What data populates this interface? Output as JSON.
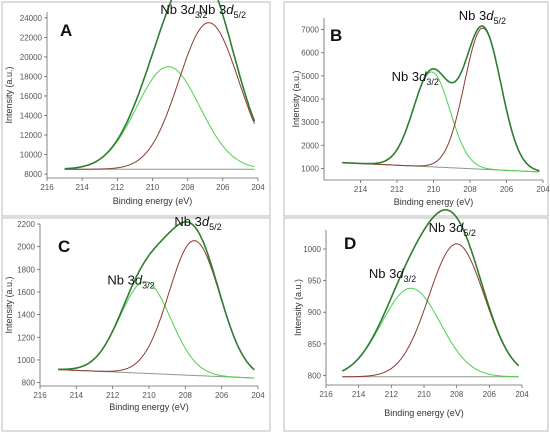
{
  "figure": {
    "peak_prefix": "Nb 3",
    "peak_italic": "d"
  },
  "colors": {
    "envelope": "#2e7d32",
    "nb52": "#8b3a2e",
    "nb32": "#4cd14c",
    "background": "#8a9a8a"
  },
  "chart_data": [
    {
      "panel": "A",
      "type": "line",
      "xlabel": "Binding energy (eV)",
      "ylabel": "Intensity (a.u.)",
      "xlim": [
        216,
        204
      ],
      "ylim": [
        7600,
        24600
      ],
      "grid": false,
      "x_ticks": [
        "216",
        "214",
        "212",
        "210",
        "208",
        "206",
        "204"
      ],
      "y_ticks": [
        "8000",
        "10000",
        "12000",
        "14000",
        "16000",
        "18000",
        "20000",
        "22000",
        "24000"
      ],
      "x_range": [
        215,
        204.2
      ],
      "baseline": [
        [
          215,
          8500
        ],
        [
          204.2,
          8500
        ]
      ],
      "peaks": [
        {
          "name": "Nb 3d3/2",
          "label_sub": "3/2",
          "center": 209.1,
          "height": 10500,
          "width": 1.8
        },
        {
          "name": "Nb 3d5/2",
          "label_sub": "5/2",
          "center": 206.8,
          "height": 15000,
          "width": 1.7
        }
      ]
    },
    {
      "panel": "B",
      "type": "line",
      "xlabel": "Binding energy (eV)",
      "ylabel": "Intensity (a.u.)",
      "xlim": [
        216,
        204
      ],
      "ylim": [
        500,
        7500
      ],
      "grid": false,
      "x_ticks": [
        "214",
        "212",
        "210",
        "208",
        "206",
        "204"
      ],
      "y_ticks": [
        "1000",
        "2000",
        "3000",
        "4000",
        "5000",
        "6000",
        "7000"
      ],
      "x_range": [
        215,
        204.2
      ],
      "baseline": [
        [
          215,
          1250
        ],
        [
          204.2,
          850
        ]
      ],
      "peaks": [
        {
          "name": "Nb 3d3/2",
          "label_sub": "3/2",
          "center": 210.1,
          "height": 4100,
          "width": 1.0
        },
        {
          "name": "Nb 3d5/2",
          "label_sub": "5/2",
          "center": 207.3,
          "height": 6100,
          "width": 1.0
        }
      ]
    },
    {
      "panel": "C",
      "type": "line",
      "xlabel": "Binding energy (eV)",
      "ylabel": "Intensity (a.u.)",
      "xlim": [
        216,
        204
      ],
      "ylim": [
        770,
        2200
      ],
      "grid": false,
      "x_ticks": [
        "216",
        "214",
        "212",
        "210",
        "208",
        "206",
        "204"
      ],
      "y_ticks": [
        "800",
        "1000",
        "1200",
        "1400",
        "1600",
        "1800",
        "2000",
        "2200"
      ],
      "x_range": [
        215,
        204.2
      ],
      "baseline": [
        [
          215,
          915
        ],
        [
          204.2,
          840
        ]
      ],
      "peaks": [
        {
          "name": "Nb 3d3/2",
          "label_sub": "3/2",
          "center": 210.2,
          "height": 810,
          "width": 1.4
        },
        {
          "name": "Nb 3d5/2",
          "label_sub": "5/2",
          "center": 207.5,
          "height": 1190,
          "width": 1.4
        }
      ]
    },
    {
      "panel": "D",
      "type": "line",
      "xlabel": "Binding energy (eV)",
      "ylabel": "Intensity (a.u.)",
      "xlim": [
        216,
        204
      ],
      "ylim": [
        785,
        1030
      ],
      "grid": false,
      "x_ticks": [
        "216",
        "214",
        "212",
        "210",
        "208",
        "206",
        "204"
      ],
      "y_ticks": [
        "800",
        "850",
        "900",
        "950",
        "1000"
      ],
      "x_range": [
        215,
        204.2
      ],
      "baseline": [
        [
          215,
          798
        ],
        [
          204.2,
          798
        ]
      ],
      "peaks": [
        {
          "name": "Nb 3d3/2",
          "label_sub": "3/2",
          "center": 210.8,
          "height": 140,
          "width": 1.8
        },
        {
          "name": "Nb 3d5/2",
          "label_sub": "5/2",
          "center": 208.0,
          "height": 210,
          "width": 1.7
        }
      ]
    }
  ]
}
